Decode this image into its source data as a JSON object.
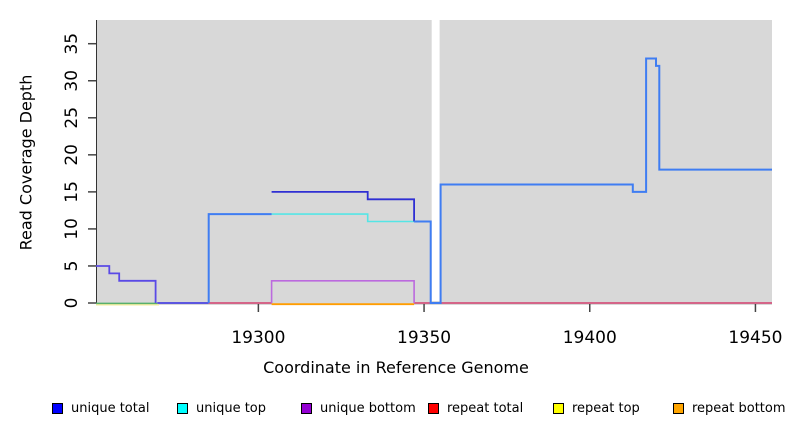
{
  "figure": {
    "background": "#ffffff",
    "panel_background": "#d8d8d8",
    "masked_column_color": "#ffffff",
    "axis_color": "#333333"
  },
  "axes": {
    "x_label": "Coordinate in Reference Genome",
    "y_label": "Read Coverage Depth"
  },
  "chart_data": {
    "type": "line",
    "subtype": "step-coverage-plot",
    "title": "",
    "xlabel": "Coordinate in Reference Genome",
    "ylabel": "Read Coverage Depth",
    "xlim": [
      19251,
      19455
    ],
    "ylim": [
      0,
      38.2
    ],
    "x_ticks": [
      19300,
      19350,
      19400,
      19450
    ],
    "y_ticks": [
      0,
      5,
      10,
      15,
      20,
      25,
      30,
      35
    ],
    "grid": false,
    "legend_position": "bottom",
    "masked_region": {
      "from": 19352.3,
      "to": 19354.7
    },
    "series": [
      {
        "name": "unique total",
        "color": "#0000ff",
        "step_points": [
          [
            19251,
            5
          ],
          [
            19255,
            4
          ],
          [
            19258,
            3
          ],
          [
            19269,
            0
          ],
          [
            19285,
            12
          ],
          [
            19304,
            15
          ],
          [
            19333,
            14
          ],
          [
            19347,
            11
          ],
          [
            19352,
            0
          ],
          [
            19355,
            16
          ],
          [
            19413,
            15
          ],
          [
            19417,
            33
          ],
          [
            19420,
            32
          ],
          [
            19421,
            18
          ],
          [
            19455,
            18
          ]
        ]
      },
      {
        "name": "unique top",
        "color": "#00ffff",
        "step_points": [
          [
            19251,
            0
          ],
          [
            19285,
            12
          ],
          [
            19333,
            11
          ],
          [
            19352,
            0
          ],
          [
            19355,
            16
          ],
          [
            19413,
            15
          ],
          [
            19417,
            33
          ],
          [
            19420,
            32
          ],
          [
            19421,
            18
          ],
          [
            19455,
            18
          ]
        ]
      },
      {
        "name": "unique bottom",
        "color": "#9400d3",
        "step_points": [
          [
            19251,
            5
          ],
          [
            19255,
            4
          ],
          [
            19258,
            3
          ],
          [
            19269,
            0
          ],
          [
            19304,
            3
          ],
          [
            19347,
            0
          ],
          [
            19455,
            0
          ]
        ]
      },
      {
        "name": "repeat total",
        "color": "#ff0000",
        "step_points": [
          [
            19251,
            0
          ],
          [
            19455,
            0
          ]
        ]
      },
      {
        "name": "repeat top",
        "color": "#ffff00",
        "step_points": [
          [
            19251,
            0
          ],
          [
            19455,
            0
          ]
        ]
      },
      {
        "name": "repeat bottom",
        "color": "#ffa500",
        "step_points": [
          [
            19251,
            0
          ],
          [
            19455,
            0
          ]
        ]
      }
    ],
    "rendered_segments": [
      {
        "name": "repeat-top-baseline",
        "color": "#f0ed9e",
        "width": 1.5,
        "dy": 1.8,
        "points": [
          [
            19251,
            0
          ],
          [
            19270,
            0
          ]
        ]
      },
      {
        "name": "unique-top-baseline-green",
        "color": "#58b06c",
        "width": 1.5,
        "dy": 0.4,
        "points": [
          [
            19251,
            0
          ],
          [
            19269.5,
            0
          ]
        ]
      },
      {
        "name": "unique-total-baseline",
        "color": "#4a44e0",
        "width": 1.8,
        "dy": 0,
        "points": [
          [
            19269.5,
            0
          ],
          [
            19285,
            0
          ]
        ]
      },
      {
        "name": "repeat-total-baseline-a",
        "color": "#d23f6e",
        "width": 1.5,
        "dy": 0,
        "points": [
          [
            19285,
            0
          ],
          [
            19304,
            0
          ]
        ]
      },
      {
        "name": "repeat-bottom-baseline",
        "color": "#ff9d00",
        "width": 1.8,
        "dy": 1.2,
        "points": [
          [
            19304,
            0
          ],
          [
            19347,
            0
          ]
        ]
      },
      {
        "name": "repeat-total-baseline-b",
        "color": "#d23f6e",
        "width": 1.5,
        "dy": 0,
        "points": [
          [
            19347,
            0
          ],
          [
            19455,
            0
          ]
        ]
      },
      {
        "name": "unique-total-left-steps",
        "color": "#5a4ae6",
        "width": 1.8,
        "dy": 0,
        "points": [
          [
            19251,
            5
          ],
          [
            19255,
            5
          ],
          [
            19255,
            4
          ],
          [
            19258,
            4
          ],
          [
            19258,
            3
          ],
          [
            19269,
            3
          ],
          [
            19269,
            0
          ]
        ]
      },
      {
        "name": "unique-bottom-box",
        "color": "#bc6ade",
        "width": 1.6,
        "dy": 0,
        "points": [
          [
            19304,
            0
          ],
          [
            19304,
            3
          ],
          [
            19347,
            3
          ],
          [
            19347,
            0
          ]
        ]
      },
      {
        "name": "unique-top-line",
        "color": "#55e5e5",
        "width": 1.6,
        "dy": 0,
        "points": [
          [
            19304,
            12
          ],
          [
            19333,
            12
          ],
          [
            19333,
            11
          ],
          [
            19348.5,
            11
          ]
        ]
      },
      {
        "name": "unique-total-line",
        "color": "#2f2fd3",
        "width": 1.8,
        "dy": 0,
        "points": [
          [
            19304,
            15
          ],
          [
            19333,
            15
          ],
          [
            19333,
            14
          ],
          [
            19347,
            14
          ],
          [
            19347,
            11
          ]
        ]
      },
      {
        "name": "merged-total-rise",
        "color": "#3f7df2",
        "width": 2,
        "dy": 0,
        "points": [
          [
            19285,
            0
          ],
          [
            19285,
            12
          ],
          [
            19304,
            12
          ]
        ]
      },
      {
        "name": "merged-total-main",
        "color": "#3f7df2",
        "width": 2,
        "dy": 0,
        "points": [
          [
            19347,
            11
          ],
          [
            19352,
            11
          ],
          [
            19352,
            0
          ],
          [
            19355,
            0
          ],
          [
            19355,
            16
          ],
          [
            19413,
            16
          ],
          [
            19413,
            15
          ],
          [
            19417,
            15
          ],
          [
            19417,
            33
          ],
          [
            19420,
            33
          ],
          [
            19420,
            32
          ],
          [
            19421,
            32
          ],
          [
            19421,
            18
          ],
          [
            19455,
            18
          ]
        ]
      }
    ]
  },
  "legend": {
    "items": [
      {
        "label": "unique total",
        "color": "#0000ff"
      },
      {
        "label": "unique top",
        "color": "#00ffff"
      },
      {
        "label": "unique bottom",
        "color": "#9400d3"
      },
      {
        "label": "repeat total",
        "color": "#ff0000"
      },
      {
        "label": "repeat top",
        "color": "#ffff00"
      },
      {
        "label": "repeat bottom",
        "color": "#ffa500"
      }
    ]
  }
}
